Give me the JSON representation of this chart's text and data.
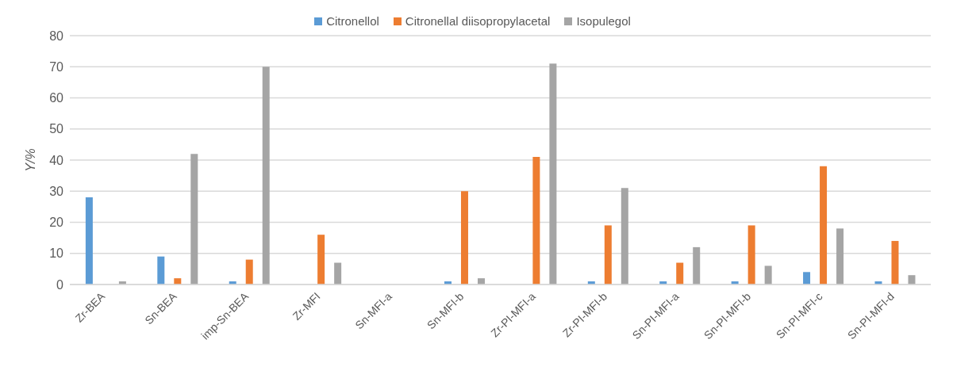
{
  "chart_data": {
    "type": "bar",
    "ylabel": "Y/%",
    "categories": [
      "Zr-BEA",
      "Sn-BEA",
      "imp-Sn-BEA",
      "Zr-MFI",
      "Sn-MFI-a",
      "Sn-MFI-b",
      "Zr-PI-MFI-a",
      "Zr-PI-MFI-b",
      "Sn-PI-MFI-a",
      "Sn-PI-MFI-b",
      "Sn-PI-MFI-c",
      "Sn-PI-MFI-d"
    ],
    "series": [
      {
        "name": "Citronellol",
        "color": "#5b9bd5",
        "values": [
          28,
          9,
          1,
          0,
          0,
          1,
          0,
          1,
          1,
          1,
          4,
          1
        ]
      },
      {
        "name": "Citronellal diisopropylacetal",
        "color": "#ed7d31",
        "values": [
          0,
          2,
          8,
          16,
          0,
          30,
          41,
          19,
          7,
          19,
          38,
          14
        ]
      },
      {
        "name": "Isopulegol",
        "color": "#a5a5a5",
        "values": [
          1,
          42,
          70,
          7,
          0,
          2,
          71,
          31,
          12,
          6,
          18,
          3
        ]
      }
    ],
    "ylim": [
      0,
      80
    ],
    "yticks": [
      0,
      10,
      20,
      30,
      40,
      50,
      60,
      70,
      80
    ],
    "grid": "y",
    "legend": "top"
  }
}
